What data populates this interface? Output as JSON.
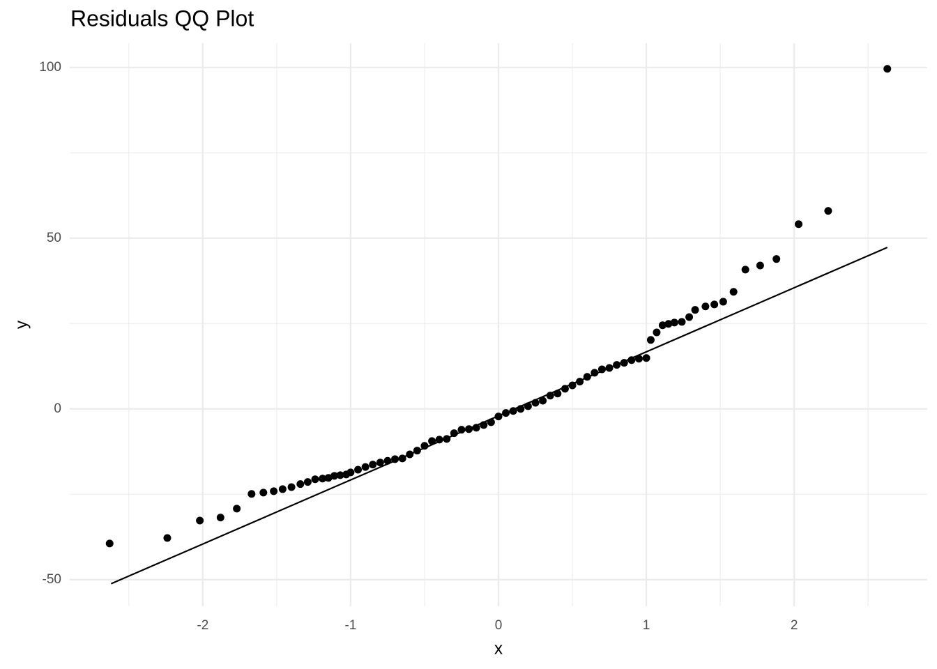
{
  "chart_data": {
    "type": "scatter",
    "title": "Residuals QQ Plot",
    "x_label": "x",
    "y_label": "y",
    "color": "#000000",
    "grid": true,
    "xlim": [
      -2.9,
      2.9
    ],
    "ylim": [
      -57.8,
      107.1
    ],
    "xticks": [
      -2,
      -1,
      0,
      1,
      2
    ],
    "yticks": [
      -50,
      0,
      50,
      100
    ],
    "minor_xticks": [
      -2.5,
      -1.5,
      -0.5,
      0.5,
      1.5,
      2.5
    ],
    "minor_yticks": [
      -25,
      25,
      75
    ],
    "reference_line": {
      "x": [
        -2.62,
        2.63
      ],
      "y": [
        -51.2,
        47.3
      ]
    },
    "x": [
      -2.63,
      -2.24,
      -2.02,
      -1.88,
      -1.77,
      -1.67,
      -1.59,
      -1.52,
      -1.46,
      -1.4,
      -1.34,
      -1.29,
      -1.24,
      -1.19,
      -1.15,
      -1.11,
      -1.07,
      -1.03,
      -1.0,
      -0.95,
      -0.9,
      -0.85,
      -0.8,
      -0.75,
      -0.7,
      -0.65,
      -0.6,
      -0.55,
      -0.5,
      -0.45,
      -0.4,
      -0.35,
      -0.3,
      -0.25,
      -0.2,
      -0.15,
      -0.1,
      -0.05,
      0,
      0.05,
      0.1,
      0.15,
      0.2,
      0.25,
      0.3,
      0.35,
      0.4,
      0.45,
      0.5,
      0.55,
      0.6,
      0.65,
      0.7,
      0.75,
      0.8,
      0.85,
      0.9,
      0.95,
      1.0,
      1.03,
      1.07,
      1.11,
      1.15,
      1.19,
      1.24,
      1.29,
      1.33,
      1.4,
      1.46,
      1.52,
      1.59,
      1.67,
      1.77,
      1.88,
      2.03,
      2.23,
      2.63
    ],
    "values": [
      -39.4,
      -37.8,
      -32.7,
      -31.8,
      -29.2,
      -24.9,
      -24.5,
      -24.1,
      -23.5,
      -22.9,
      -22.0,
      -21.4,
      -20.6,
      -20.4,
      -20.2,
      -19.6,
      -19.4,
      -19.2,
      -18.6,
      -17.8,
      -17.0,
      -16.3,
      -15.7,
      -15.2,
      -14.7,
      -14.5,
      -13.3,
      -12.2,
      -10.8,
      -9.4,
      -9.0,
      -8.8,
      -7.1,
      -6.1,
      -5.9,
      -5.5,
      -4.7,
      -3.9,
      -2.2,
      -1.2,
      -0.6,
      0,
      0.8,
      1.8,
      2.4,
      3.9,
      4.5,
      5.9,
      6.9,
      8.0,
      9.4,
      10.6,
      11.6,
      12.0,
      12.9,
      13.5,
      14.3,
      14.7,
      14.9,
      20.2,
      22.4,
      24.5,
      24.9,
      25.3,
      25.5,
      26.9,
      29.0,
      30.0,
      30.6,
      31.4,
      34.3,
      40.8,
      42.0,
      43.9,
      54.1,
      58.0,
      99.6
    ]
  }
}
